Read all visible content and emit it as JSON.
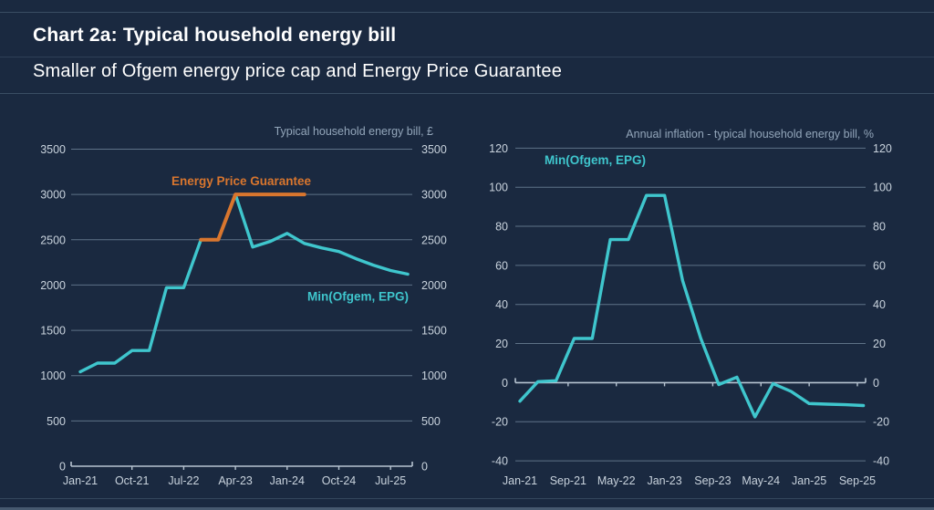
{
  "header": {
    "title": "Chart 2a: Typical household energy bill",
    "subtitle": "Smaller of Ofgem energy price cap and Energy Price Guarantee"
  },
  "colors": {
    "background": "#1a2940",
    "teal": "#3fc6cd",
    "orange": "#d9762e",
    "grid": "#5e7287",
    "zero_axis": "#b7c4d1",
    "tick_label": "#c9d3dd",
    "chart_title": "#93a6ba",
    "header_text": "#ffffff",
    "separator": "#3a4d63"
  },
  "chart_data": [
    {
      "type": "line",
      "title": "Typical household energy bill, £",
      "grid": true,
      "ylim": [
        0,
        3500
      ],
      "y_ticks": [
        0,
        500,
        1000,
        1500,
        2000,
        2500,
        3000,
        3500
      ],
      "y_labels_both_sides": true,
      "x_tick_labels": [
        "Jan-21",
        "Oct-21",
        "Jul-22",
        "Apr-23",
        "Jan-24",
        "Oct-24",
        "Jul-25"
      ],
      "months_between_ticks": 9,
      "categories": [
        "Jan-21",
        "Apr-21",
        "Jul-21",
        "Oct-21",
        "Jan-22",
        "Apr-22",
        "Jul-22",
        "Oct-22",
        "Jan-23",
        "Apr-23",
        "Jul-23",
        "Oct-23",
        "Jan-24",
        "Apr-24",
        "Jul-24",
        "Oct-24",
        "Jan-25",
        "Apr-25",
        "Jul-25",
        "Oct-25"
      ],
      "series": [
        {
          "name": "Min(Ofgem, EPG)",
          "color_key": "teal",
          "start_index": 0,
          "values": [
            1042,
            1138,
            1138,
            1277,
            1277,
            1971,
            1971,
            2500,
            2500,
            3000,
            2420,
            2480,
            2570,
            2460,
            2410,
            2370,
            2290,
            2220,
            2160,
            2120
          ]
        },
        {
          "name": "Energy Price Guarantee",
          "color_key": "orange",
          "start_index": 7,
          "values": [
            2500,
            2500,
            3000,
            3000,
            3000,
            3000,
            3000
          ]
        }
      ],
      "legend_position": "annotations on chart"
    },
    {
      "type": "line",
      "title": "Annual inflation - typical household energy bill, %",
      "grid": true,
      "ylim": [
        -40,
        120
      ],
      "y_ticks": [
        -40,
        -20,
        0,
        20,
        40,
        60,
        80,
        100,
        120
      ],
      "y_labels_both_sides": true,
      "x_tick_labels": [
        "Jan-21",
        "Sep-21",
        "May-22",
        "Jan-23",
        "Sep-23",
        "May-24",
        "Jan-25",
        "Sep-25"
      ],
      "months_between_ticks": 8,
      "categories": [
        "Jan-21",
        "Apr-21",
        "Jul-21",
        "Oct-21",
        "Jan-22",
        "Apr-22",
        "Jul-22",
        "Oct-22",
        "Jan-23",
        "Apr-23",
        "Jul-23",
        "Oct-23",
        "Jan-24",
        "Apr-24",
        "Jul-24",
        "Oct-24",
        "Jan-25",
        "Apr-25",
        "Jul-25",
        "Oct-25"
      ],
      "series": [
        {
          "name": "Min(Ofgem, EPG)",
          "color_key": "teal",
          "start_index": 0,
          "values": [
            -9.5,
            0.5,
            1.0,
            22.6,
            22.6,
            73.2,
            73.2,
            95.8,
            95.8,
            52.2,
            22.8,
            -1.0,
            2.8,
            -17.5,
            -0.5,
            -4.5,
            -10.7,
            -11.0,
            -11.3,
            -11.7
          ]
        }
      ],
      "legend_position": "annotation top left"
    }
  ]
}
